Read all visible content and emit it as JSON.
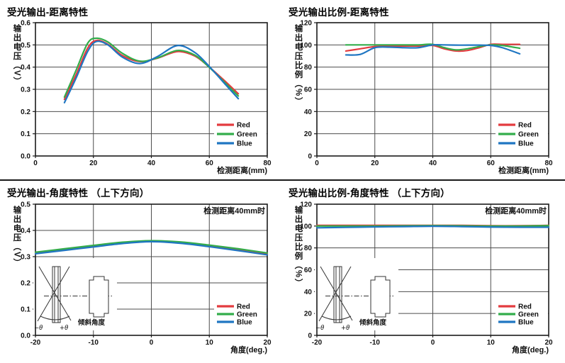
{
  "figure": {
    "background": "#ffffff",
    "divider_color": "#1a1a1a"
  },
  "colors": {
    "red": "#e33b3f",
    "green": "#33ad4b",
    "blue": "#1f76c2",
    "grid": "#4d4d4d",
    "axis": "#1a1a1a"
  },
  "inset": {
    "minus_theta": "−θ",
    "plus_theta": "+θ",
    "tilt_label": "倾斜角度"
  },
  "chart_data": [
    {
      "type": "line",
      "title": "受光输出-距离特性",
      "ylabel": "输出电压（V）",
      "xlabel": "检测距离(mm)",
      "annotation": "",
      "xlim": [
        0,
        80
      ],
      "ylim": [
        0,
        0.6
      ],
      "xticks": [
        "0",
        "20",
        "40",
        "60",
        "80"
      ],
      "yticks": [
        "0.0",
        "0.1",
        "0.2",
        "0.3",
        "0.4",
        "0.5",
        "0.6"
      ],
      "grid": true,
      "legend_position": "lower right",
      "inset": false,
      "series": [
        {
          "name": "Red",
          "color": "#e33b3f",
          "x": [
            10,
            14,
            18,
            21,
            25,
            30,
            36,
            42,
            49,
            55,
            60,
            65,
            70
          ],
          "y": [
            0.255,
            0.365,
            0.485,
            0.52,
            0.503,
            0.452,
            0.425,
            0.44,
            0.47,
            0.45,
            0.4,
            0.342,
            0.28
          ]
        },
        {
          "name": "Green",
          "color": "#33ad4b",
          "x": [
            10,
            14,
            18,
            21,
            25,
            30,
            36,
            42,
            49,
            55,
            60,
            65,
            70
          ],
          "y": [
            0.265,
            0.385,
            0.507,
            0.53,
            0.513,
            0.462,
            0.427,
            0.441,
            0.475,
            0.454,
            0.399,
            0.335,
            0.27
          ]
        },
        {
          "name": "Blue",
          "color": "#1f76c2",
          "x": [
            10,
            14,
            18,
            21,
            25,
            30,
            36,
            42,
            49,
            55,
            60,
            65,
            70
          ],
          "y": [
            0.24,
            0.35,
            0.47,
            0.515,
            0.5,
            0.445,
            0.416,
            0.447,
            0.497,
            0.466,
            0.403,
            0.33,
            0.258
          ]
        }
      ]
    },
    {
      "type": "line",
      "title": "受光输出比例-距离特性",
      "ylabel": "输出电压比例（%）",
      "xlabel": "检测距离(mm)",
      "annotation": "",
      "xlim": [
        0,
        80
      ],
      "ylim": [
        0,
        120
      ],
      "xticks": [
        "0",
        "20",
        "40",
        "60",
        "80"
      ],
      "yticks": [
        "0",
        "20",
        "40",
        "60",
        "80",
        "100",
        "120"
      ],
      "grid": true,
      "legend_position": "lower right",
      "inset": false,
      "series": [
        {
          "name": "Red",
          "color": "#e33b3f",
          "x": [
            10,
            15,
            20,
            25,
            30,
            35,
            40,
            44,
            48,
            52,
            56,
            60,
            64,
            70
          ],
          "y": [
            94.5,
            96.5,
            98.5,
            99,
            99,
            99,
            99.5,
            96.5,
            94.5,
            95,
            97.5,
            100.5,
            100.5,
            100.5
          ]
        },
        {
          "name": "Green",
          "color": "#33ad4b",
          "x": [
            10,
            15,
            20,
            25,
            30,
            35,
            40,
            44,
            48,
            52,
            56,
            60,
            64,
            70
          ],
          "y": [
            100,
            100,
            100,
            100,
            100,
            100,
            100.5,
            97.5,
            95.5,
            96.5,
            98.5,
            100,
            99.5,
            97
          ]
        },
        {
          "name": "Blue",
          "color": "#1f76c2",
          "x": [
            10,
            15,
            20,
            25,
            30,
            35,
            40,
            44,
            48,
            52,
            56,
            60,
            64,
            70
          ],
          "y": [
            91,
            91.5,
            97.5,
            98,
            97.5,
            97.5,
            100,
            100,
            99.8,
            99.8,
            99.8,
            99.5,
            97.5,
            92
          ]
        }
      ]
    },
    {
      "type": "line",
      "title": "受光输出-角度特性 （上下方向）",
      "ylabel": "输出电压（V）",
      "xlabel": "角度(deg.)",
      "annotation": "检测距离40mm时",
      "xlim": [
        -20,
        20
      ],
      "ylim": [
        0,
        0.5
      ],
      "xticks": [
        "-20",
        "-10",
        "0",
        "10",
        "20"
      ],
      "yticks": [
        "0.0",
        "0.1",
        "0.2",
        "0.3",
        "0.4",
        "0.5"
      ],
      "grid": true,
      "legend_position": "lower right",
      "inset": true,
      "series": [
        {
          "name": "Red",
          "color": "#e33b3f",
          "x": [
            -20,
            -15,
            -10,
            -5,
            0,
            5,
            10,
            15,
            20
          ],
          "y": [
            0.314,
            0.327,
            0.34,
            0.352,
            0.358,
            0.353,
            0.341,
            0.327,
            0.311
          ]
        },
        {
          "name": "Green",
          "color": "#33ad4b",
          "x": [
            -20,
            -15,
            -10,
            -5,
            0,
            5,
            10,
            15,
            20
          ],
          "y": [
            0.317,
            0.33,
            0.343,
            0.355,
            0.361,
            0.356,
            0.344,
            0.33,
            0.314
          ]
        },
        {
          "name": "Blue",
          "color": "#1f76c2",
          "x": [
            -20,
            -15,
            -10,
            -5,
            0,
            5,
            10,
            15,
            20
          ],
          "y": [
            0.311,
            0.324,
            0.337,
            0.35,
            0.357,
            0.351,
            0.338,
            0.323,
            0.307
          ]
        }
      ]
    },
    {
      "type": "line",
      "title": "受光输出比例-角度特性 （上下方向）",
      "ylabel": "输出电压比例（%）",
      "xlabel": "角度(deg.)",
      "annotation": "检测距离40mm时",
      "xlim": [
        -20,
        20
      ],
      "ylim": [
        0,
        120
      ],
      "xticks": [
        "-20",
        "-10",
        "0",
        "10",
        "20"
      ],
      "yticks": [
        "0",
        "20",
        "40",
        "60",
        "80",
        "100",
        "120"
      ],
      "grid": true,
      "legend_position": "lower right",
      "inset": true,
      "series": [
        {
          "name": "Red",
          "color": "#e33b3f",
          "x": [
            -20,
            -15,
            -10,
            -5,
            0,
            5,
            10,
            15,
            20
          ],
          "y": [
            100.6,
            100.6,
            100.6,
            100.6,
            100.6,
            100.6,
            100.3,
            100.3,
            100.6
          ]
        },
        {
          "name": "Green",
          "color": "#33ad4b",
          "x": [
            -20,
            -15,
            -10,
            -5,
            0,
            5,
            10,
            15,
            20
          ],
          "y": [
            100,
            100,
            100,
            100.2,
            100.4,
            100.2,
            100,
            100,
            100.4
          ]
        },
        {
          "name": "Blue",
          "color": "#1f76c2",
          "x": [
            -20,
            -15,
            -10,
            -5,
            0,
            5,
            10,
            15,
            20
          ],
          "y": [
            98.4,
            98.8,
            99.2,
            99.5,
            99.8,
            99.5,
            99.1,
            98.9,
            98.9
          ]
        }
      ]
    }
  ]
}
